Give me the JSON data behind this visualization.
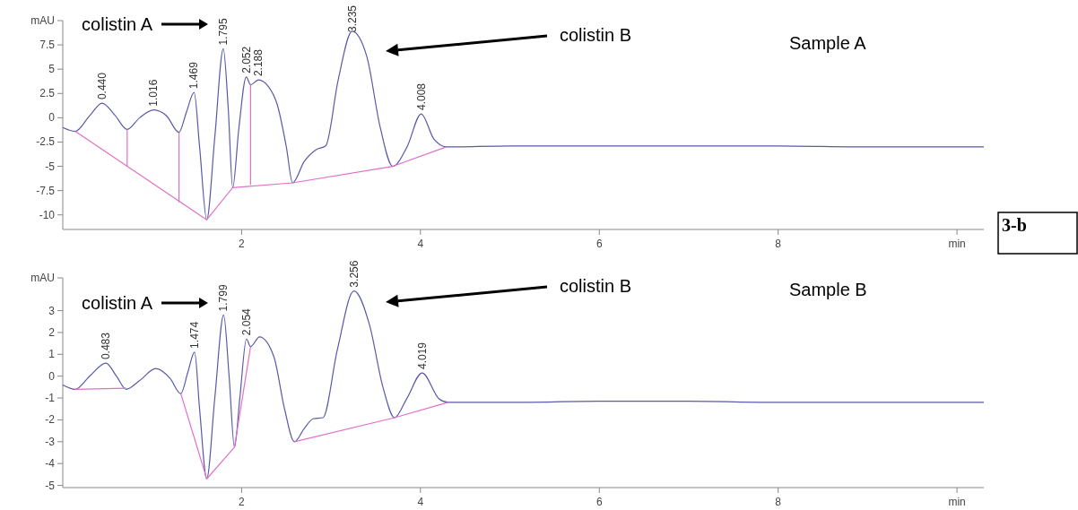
{
  "chart_data": [
    {
      "type": "line",
      "xlim": [
        0,
        10.3
      ],
      "xticks": [
        2,
        4,
        6,
        8,
        {
          "value": 10,
          "label": "min"
        }
      ],
      "ylim": [
        -11.5,
        10
      ],
      "yticks": [
        -10,
        -7.5,
        -5,
        -2.5,
        0,
        2.5,
        5,
        7.5,
        {
          "value": 10,
          "label": "mAU"
        }
      ],
      "series": [
        {
          "color": "#5a5aa8",
          "x": [
            0,
            0.14,
            0.3,
            0.44,
            0.58,
            0.72,
            0.86,
            1.016,
            1.16,
            1.3,
            1.38,
            1.469,
            1.53,
            1.61,
            1.7,
            1.795,
            1.85,
            1.9,
            1.97,
            2.052,
            2.1,
            2.188,
            2.3,
            2.4,
            2.5,
            2.57,
            2.7,
            2.83,
            2.94,
            3.08,
            3.235,
            3.4,
            3.55,
            3.69,
            3.85,
            4.008,
            4.15,
            4.29,
            5,
            6,
            7,
            8,
            9,
            10.3
          ],
          "values": [
            -1.0,
            -1.4,
            0.2,
            1.5,
            0.3,
            -1.2,
            0.0,
            0.8,
            0.2,
            -1.5,
            0.5,
            2.6,
            -3,
            -10.5,
            -2,
            7.1,
            1,
            -7.2,
            -1,
            4.2,
            3.4,
            3.9,
            3.2,
            1.3,
            -3,
            -6.7,
            -4.5,
            -3.3,
            -2.9,
            3.9,
            8.9,
            6.3,
            -1,
            -5.0,
            -3,
            0.4,
            -2.2,
            -3.0,
            -2.9,
            -2.9,
            -2.9,
            -2.9,
            -3.0,
            -3.0
          ]
        },
        {
          "color": "#e070c8",
          "x": [
            0.14,
            1.61,
            1.9,
            2.57,
            3.69,
            4.29
          ],
          "values": [
            -1.4,
            -10.5,
            -7.2,
            -6.7,
            -5.0,
            -3.0
          ]
        },
        {
          "color": "#e070c8",
          "x": [
            0.72,
            0.72
          ],
          "values": [
            -1.2,
            -5.0
          ]
        },
        {
          "color": "#e070c8",
          "x": [
            1.3,
            1.3
          ],
          "values": [
            -1.5,
            -8.7
          ]
        },
        {
          "color": "#e070c8",
          "x": [
            2.1,
            2.1
          ],
          "values": [
            3.4,
            -6.9
          ]
        }
      ],
      "annotations": [
        {
          "text": "0.440",
          "x": 0.44,
          "y": 1.5
        },
        {
          "text": "1.016",
          "x": 1.016,
          "y": 0.8
        },
        {
          "text": "1.469",
          "x": 1.469,
          "y": 2.6
        },
        {
          "text": "1.795",
          "x": 1.795,
          "y": 7.1
        },
        {
          "text": "2.052",
          "x": 2.052,
          "y": 4.2
        },
        {
          "text": "2.188",
          "x": 2.188,
          "y": 3.9
        },
        {
          "text": "3.235",
          "x": 3.235,
          "y": 8.9
        },
        {
          "text": "4.008",
          "x": 4.008,
          "y": 0.4
        },
        "colistin A",
        "colistin B",
        "Sample A",
        "3-b"
      ]
    },
    {
      "type": "line",
      "xlim": [
        0,
        10.3
      ],
      "xticks": [
        2,
        4,
        6,
        8,
        {
          "value": 10,
          "label": "min"
        }
      ],
      "ylim": [
        -5.1,
        4.5
      ],
      "yticks": [
        -5,
        -4,
        -3,
        -2,
        -1,
        0,
        1,
        2,
        3,
        {
          "value": 4.5,
          "label": "mAU"
        }
      ],
      "series": [
        {
          "color": "#5a5aa8",
          "x": [
            0,
            0.14,
            0.3,
            0.483,
            0.6,
            0.71,
            0.86,
            1.04,
            1.2,
            1.32,
            1.4,
            1.474,
            1.53,
            1.61,
            1.7,
            1.799,
            1.86,
            1.92,
            1.98,
            2.054,
            2.1,
            2.2,
            2.36,
            2.48,
            2.59,
            2.7,
            2.8,
            2.91,
            3.07,
            3.256,
            3.43,
            3.58,
            3.71,
            3.85,
            4.019,
            4.21,
            4.31,
            5,
            6,
            7,
            8,
            9,
            10.3
          ],
          "values": [
            -0.4,
            -0.6,
            0.0,
            0.6,
            0.0,
            -0.6,
            -0.2,
            0.35,
            -0.1,
            -0.8,
            0.2,
            1.1,
            -1.5,
            -4.7,
            -1.0,
            2.8,
            0.0,
            -3.25,
            -1.0,
            1.7,
            1.35,
            1.8,
            0.9,
            -1.5,
            -3.0,
            -2.4,
            -1.95,
            -1.9,
            1.2,
            3.9,
            2.35,
            -0.5,
            -1.9,
            -1.0,
            0.15,
            -1.05,
            -1.2,
            -1.2,
            -1.15,
            -1.15,
            -1.2,
            -1.2,
            -1.2
          ]
        },
        {
          "color": "#e070c8",
          "x": [
            0.14,
            0.71
          ],
          "values": [
            -0.6,
            -0.55
          ]
        },
        {
          "color": "#e070c8",
          "x": [
            1.32,
            1.61,
            1.92,
            2.1
          ],
          "values": [
            -0.8,
            -4.7,
            -3.25,
            1.35
          ]
        },
        {
          "color": "#e070c8",
          "x": [
            2.59,
            3.71,
            4.31
          ],
          "values": [
            -3.0,
            -1.9,
            -1.2
          ]
        }
      ],
      "annotations": [
        {
          "text": "0.483",
          "x": 0.483,
          "y": 0.6
        },
        {
          "text": "1.474",
          "x": 1.474,
          "y": 1.1
        },
        {
          "text": "1.799",
          "x": 1.799,
          "y": 2.8
        },
        {
          "text": "2.054",
          "x": 2.054,
          "y": 1.7
        },
        {
          "text": "3.256",
          "x": 3.256,
          "y": 3.9
        },
        {
          "text": "4.019",
          "x": 4.019,
          "y": 0.15
        },
        "colistin A",
        "colistin B",
        "Sample B"
      ]
    }
  ]
}
